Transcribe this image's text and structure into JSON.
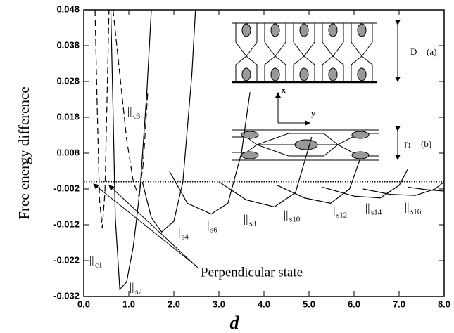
{
  "chart_data": {
    "type": "line",
    "y_label": "Free energy difference",
    "x_label": "d",
    "xlim": [
      0,
      8
    ],
    "ylim": [
      -0.032,
      0.048
    ],
    "xticks": [
      {
        "value": 0,
        "label": "0.0"
      },
      {
        "value": 1,
        "label": "1.0"
      },
      {
        "value": 2,
        "label": "2.0"
      },
      {
        "value": 3,
        "label": "3.0"
      },
      {
        "value": 4,
        "label": "4.0"
      },
      {
        "value": 5,
        "label": "5.0"
      },
      {
        "value": 6,
        "label": "6.0"
      },
      {
        "value": 7,
        "label": "7.0"
      },
      {
        "value": 8,
        "label": "8.0"
      }
    ],
    "yticks": [
      0.048,
      0.038,
      0.028,
      0.018,
      0.008,
      -0.002,
      -0.012,
      -0.022,
      -0.032
    ],
    "reference_line": 0,
    "annotation": "Perpendicular state",
    "series": [
      {
        "symbol": "||",
        "name": "c1",
        "dashed": true,
        "x": [
          0.25,
          0.3,
          0.35,
          0.41,
          0.47,
          0.52,
          0.56
        ],
        "values": [
          0.048,
          0.02,
          -0.005,
          -0.013,
          -0.003,
          0.025,
          0.048
        ]
      },
      {
        "symbol": "||",
        "name": "c3",
        "dashed": true,
        "x": [
          0.65,
          0.8,
          0.95,
          1.1,
          1.22,
          1.32,
          1.42
        ],
        "values": [
          0.048,
          0.03,
          0.012,
          0.0,
          -0.004,
          0.005,
          0.025
        ]
      },
      {
        "symbol": "||",
        "name": "s2",
        "dashed": false,
        "x": [
          0.6,
          0.65,
          0.7,
          0.8,
          0.95,
          1.1,
          1.25,
          1.4,
          1.5
        ],
        "values": [
          0.048,
          0.02,
          -0.01,
          -0.03,
          -0.028,
          -0.018,
          -0.002,
          0.025,
          0.048
        ]
      },
      {
        "symbol": "||",
        "name": "s4",
        "dashed": false,
        "x": [
          1.3,
          1.5,
          1.73,
          2.0,
          2.2,
          2.4,
          2.48
        ],
        "values": [
          0.0,
          -0.01,
          -0.014,
          -0.011,
          0.0,
          0.03,
          0.048
        ]
      },
      {
        "symbol": "||",
        "name": "s6",
        "dashed": false,
        "x": [
          1.9,
          2.3,
          2.83,
          3.2,
          3.5,
          3.69
        ],
        "values": [
          0.003,
          -0.006,
          -0.009,
          -0.006,
          0.008,
          0.025
        ]
      },
      {
        "symbol": "||",
        "name": "s8",
        "dashed": false,
        "x": [
          3.0,
          3.6,
          4.23,
          4.7,
          5.06
        ],
        "values": [
          0.0,
          -0.005,
          -0.007,
          -0.003,
          0.0125
        ]
      },
      {
        "symbol": "||",
        "name": "s10",
        "dashed": false,
        "x": [
          4.3,
          4.9,
          5.48,
          5.9,
          6.14
        ],
        "values": [
          -0.001,
          -0.0045,
          -0.006,
          -0.002,
          0.0066
        ]
      },
      {
        "symbol": "||",
        "name": "s12",
        "dashed": false,
        "x": [
          5.3,
          6.0,
          6.58,
          7.0,
          7.2
        ],
        "values": [
          -0.0015,
          -0.004,
          -0.0045,
          -0.001,
          0.0037
        ]
      },
      {
        "symbol": "||",
        "name": "s14",
        "dashed": false,
        "x": [
          6.2,
          6.8,
          7.36,
          7.8,
          8.0
        ],
        "values": [
          -0.002,
          -0.0035,
          -0.0038,
          -0.002,
          0.0
        ]
      },
      {
        "symbol": "||",
        "name": "s16",
        "dashed": false,
        "x": [
          7.2,
          7.6,
          8.0
        ],
        "values": [
          -0.0015,
          -0.0022,
          -0.0026
        ]
      }
    ],
    "inset": {
      "a": "(a)",
      "b": "(b)",
      "height_a": "D",
      "height_b": "D",
      "axis_x": "x",
      "axis_y": "y"
    }
  }
}
